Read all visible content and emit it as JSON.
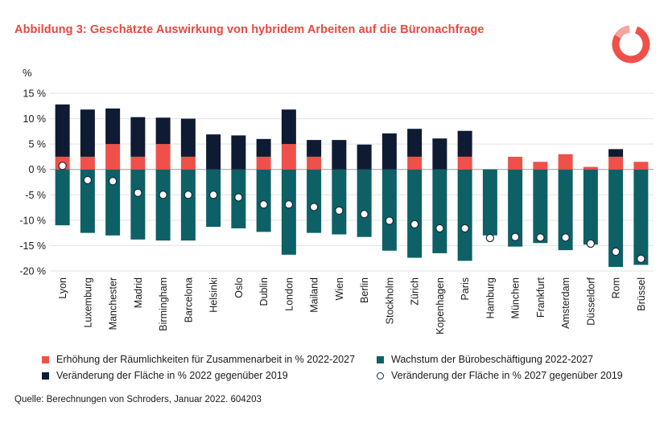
{
  "title": "Abbildung 3: Geschätzte Auswirkung von hybridem Arbeiten auf die Büronachfrage",
  "unit_label": "%",
  "source": "Quelle: Berechnungen von Schroders, Januar 2022. 604203",
  "colors": {
    "collab": "#f0504a",
    "growth": "#0d6166",
    "change2019": "#0e1b33",
    "title": "#e8483f"
  },
  "legend": {
    "collab": "Erhöhung der Räumlichkeiten für Zusammenarbeit in % 2022-2027",
    "growth": "Wachstum der Bürobeschäftigung 2022-2027",
    "change2019": "Veränderung der Fläche in % 2022 gegenüber 2019",
    "change2027": "Veränderung der Fläche in % 2027 gegenüber 2019"
  },
  "chart_data": {
    "type": "bar",
    "stacked": true,
    "categories": [
      "Lyon",
      "Luxemburg",
      "Manchester",
      "Madrid",
      "Birmingham",
      "Barcelona",
      "Helsinki",
      "Oslo",
      "Dublin",
      "London",
      "Mailand",
      "Wien",
      "Berlin",
      "Stockholm",
      "Zürich",
      "Kopenhagen",
      "Paris",
      "Hamburg",
      "München",
      "Frankfurt",
      "Amsterdam",
      "Düsseldorf",
      "Rom",
      "Brüssel"
    ],
    "ylim": [
      -20,
      15
    ],
    "yticks": [
      15,
      10,
      5,
      0,
      -5,
      -10,
      -15,
      -20
    ],
    "ytick_labels": [
      "15 %",
      "10 %",
      "5 %",
      "0 %",
      "-5 %",
      "-10 %",
      "-15 %",
      "-20 %"
    ],
    "series": [
      {
        "name": "Erhöhung der Räumlichkeiten für Zusammenarbeit in % 2022-2027",
        "key": "collab",
        "values": [
          2.5,
          2.5,
          5.0,
          2.5,
          5.0,
          2.5,
          0,
          0,
          2.5,
          5.0,
          2.5,
          0,
          0,
          0,
          2.5,
          0,
          2.5,
          0,
          2.5,
          1.5,
          3.0,
          0.5,
          2.5,
          1.5
        ]
      },
      {
        "name": "Veränderung der Fläche in % 2022 gegenüber 2019",
        "key": "change2019",
        "values": [
          10.3,
          9.3,
          7.0,
          7.8,
          5.2,
          7.5,
          6.9,
          6.7,
          3.5,
          6.8,
          3.3,
          5.8,
          4.9,
          7.1,
          5.5,
          6.1,
          5.1,
          0,
          0,
          0,
          0,
          0,
          1.5,
          0
        ]
      },
      {
        "name": "Wachstum der Bürobeschäftigung 2022-2027",
        "key": "growth",
        "values": [
          -11.0,
          -12.5,
          -13.0,
          -13.8,
          -14.0,
          -14.0,
          -11.3,
          -11.6,
          -12.3,
          -16.8,
          -12.5,
          -12.8,
          -13.3,
          -16.0,
          -17.4,
          -16.5,
          -18.0,
          -13.0,
          -15.2,
          -14.5,
          -15.9,
          -14.8,
          -19.2,
          -18.8
        ]
      },
      {
        "name": "Veränderung der Fläche in % 2027 gegenüber 2019",
        "key": "change2027",
        "type": "scatter",
        "values": [
          0.7,
          -2.1,
          -2.3,
          -4.6,
          -5.0,
          -5.0,
          -5.0,
          -5.5,
          -6.9,
          -6.9,
          -7.4,
          -8.1,
          -8.8,
          -10.1,
          -10.8,
          -11.6,
          -11.6,
          -13.5,
          -13.3,
          -13.4,
          -13.4,
          -14.6,
          -16.2,
          -17.6
        ]
      }
    ]
  }
}
